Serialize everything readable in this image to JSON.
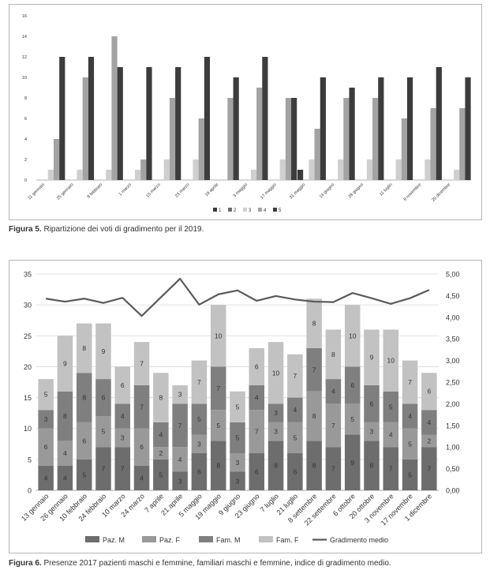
{
  "captions": {
    "fig5_label": "Figura 5.",
    "fig5_text": "Ripartizione dei voti di gradimento per il 2019.",
    "fig6_label": "Figura 6.",
    "fig6_text": "Presenze 2017 pazienti maschi e femmine, familiari maschi e femmine, indice di gradimento medio."
  },
  "chart_data": [
    {
      "type": "bar",
      "title": "",
      "xlabel": "",
      "ylabel": "",
      "ylim": [
        0,
        16
      ],
      "yticks": [
        "0",
        "2",
        "4",
        "6",
        "8",
        "10",
        "12",
        "14",
        "16"
      ],
      "grid": false,
      "legend_position": "bottom",
      "categories": [
        "11 gennaio",
        "25 gennaio",
        "8 febbraio",
        "1 marzo",
        "15 marzo",
        "23 marzo",
        "19 aprile",
        "3 maggio",
        "17 maggio",
        "31 maggio",
        "14 giugno",
        "28 giugno",
        "11 luglio",
        "8 novembre",
        "20 dicembre"
      ],
      "series": [
        {
          "name": "1",
          "color": "#3a3a3a",
          "values": [
            0,
            0,
            0,
            0,
            0,
            0,
            0,
            0,
            0,
            1,
            0,
            0,
            0,
            0,
            0
          ]
        },
        {
          "name": "2",
          "color": "#6e6e6e",
          "values": [
            0,
            0,
            0,
            0,
            0,
            0,
            0,
            0,
            0,
            0,
            0,
            0,
            0,
            0,
            0
          ]
        },
        {
          "name": "3",
          "color": "#cfcfcf",
          "values": [
            1,
            1,
            1,
            1,
            2,
            2,
            0,
            1,
            2,
            2,
            2,
            2,
            2,
            2,
            1
          ]
        },
        {
          "name": "4",
          "color": "#a3a3a3",
          "values": [
            4,
            10,
            14,
            2,
            8,
            6,
            8,
            9,
            8,
            5,
            8,
            8,
            6,
            7,
            7
          ]
        },
        {
          "name": "5",
          "color": "#3c3c3c",
          "values": [
            12,
            12,
            11,
            11,
            11,
            12,
            10,
            12,
            8,
            10,
            9,
            10,
            10,
            11,
            10
          ]
        }
      ]
    },
    {
      "type": "bar",
      "stacked": true,
      "title": "",
      "xlabel": "",
      "ylabel": "",
      "ylim": [
        0,
        35
      ],
      "yticks": [
        "0",
        "5",
        "10",
        "15",
        "20",
        "25",
        "30",
        "35"
      ],
      "y2lim": [
        0,
        5
      ],
      "y2ticks": [
        "0,00",
        "0,50",
        "1,00",
        "1,50",
        "2,00",
        "2,50",
        "3,00",
        "3,50",
        "4,00",
        "4,50",
        "5,00"
      ],
      "grid": true,
      "legend_position": "bottom",
      "categories": [
        "13 gennaio",
        "26 gennaio",
        "10 febbraio",
        "24 febbraio",
        "10 marzo",
        "24 marzo",
        "7 aprile",
        "21 aprile",
        "5 maggio",
        "19 maggio",
        "9 giugno",
        "23 giugno",
        "7 luglio",
        "21 luglio",
        "8 settembre",
        "22 settembre",
        "6 ottobre",
        "20 ottobre",
        "3 novembre",
        "17 novembre",
        "1 dicembre"
      ],
      "series": [
        {
          "name": "Paz. M",
          "color": "#6d6d6d",
          "values": [
            4,
            4,
            5,
            7,
            7,
            4,
            5,
            3,
            6,
            8,
            3,
            6,
            8,
            6,
            8,
            7,
            9,
            8,
            7,
            5,
            7
          ]
        },
        {
          "name": "Paz. F",
          "color": "#999999",
          "values": [
            6,
            4,
            6,
            5,
            3,
            6,
            2,
            4,
            3,
            5,
            3,
            7,
            3,
            5,
            8,
            7,
            5,
            3,
            4,
            5,
            2
          ]
        },
        {
          "name": "Fam. M",
          "color": "#7f7f7f",
          "values": [
            3,
            8,
            8,
            6,
            4,
            7,
            4,
            7,
            5,
            7,
            5,
            4,
            3,
            4,
            7,
            4,
            6,
            6,
            5,
            4,
            4
          ]
        },
        {
          "name": "Fam. F",
          "color": "#c2c2c2",
          "values": [
            5,
            9,
            8,
            9,
            6,
            7,
            8,
            3,
            7,
            10,
            5,
            6,
            10,
            7,
            8,
            8,
            10,
            9,
            10,
            7,
            6
          ]
        },
        {
          "name": "Gradimento medio",
          "type": "line",
          "axis": "right",
          "color": "#5a5a5a",
          "values": [
            4.43,
            4.36,
            4.43,
            4.33,
            4.45,
            4.03,
            4.46,
            4.89,
            4.29,
            4.53,
            4.62,
            4.38,
            4.49,
            4.41,
            4.36,
            4.35,
            4.56,
            4.44,
            4.31,
            4.44,
            4.63
          ]
        }
      ]
    }
  ]
}
